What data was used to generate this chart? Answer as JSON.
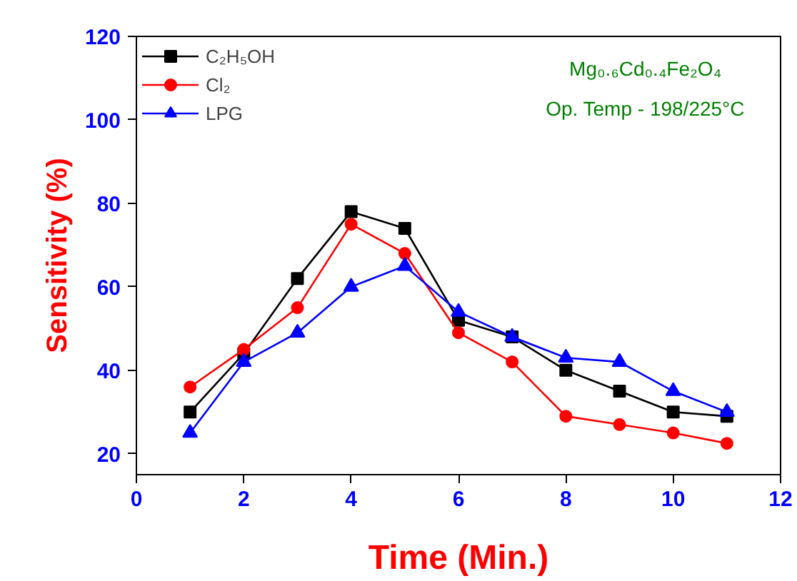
{
  "chart_data": {
    "type": "line",
    "xlabel": "Time (Min.)",
    "ylabel": "Sensitivity (%)",
    "x": [
      1,
      2,
      3,
      4,
      5,
      6,
      7,
      8,
      9,
      10,
      11
    ],
    "series": [
      {
        "name": "C₂H₅OH",
        "color": "#000000",
        "marker": "square",
        "values": [
          30,
          44,
          62,
          78,
          74,
          52,
          48,
          40,
          35,
          30,
          29
        ]
      },
      {
        "name": "Cl₂",
        "color": "#ff0000",
        "marker": "circle",
        "values": [
          36,
          45,
          55,
          75,
          68,
          49,
          42,
          29,
          27,
          25,
          22.5
        ]
      },
      {
        "name": "LPG",
        "color": "#0000ff",
        "marker": "triangle",
        "values": [
          25,
          42,
          49,
          60,
          65,
          54,
          48,
          43,
          42,
          35,
          30
        ]
      }
    ],
    "xlim": [
      0,
      12
    ],
    "ylim": [
      15,
      120
    ],
    "xticks": [
      0,
      2,
      4,
      6,
      8,
      10,
      12
    ],
    "yticks": [
      20,
      40,
      60,
      80,
      100,
      120
    ],
    "annotations": [
      "Mg₀.₆Cd₀.₄Fe₂O₄",
      "Op. Temp - 198/225°C"
    ],
    "grid": false,
    "legend": "top left",
    "line_style": "solid"
  }
}
